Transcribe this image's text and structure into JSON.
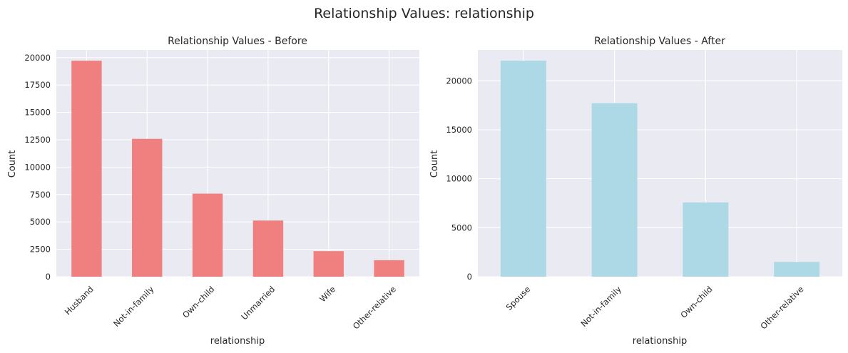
{
  "figure": {
    "suptitle": "Relationship Values: relationship",
    "background": "#ffffff",
    "axes_facecolor": "#eaeaf2",
    "grid_color": "#ffffff"
  },
  "chart_data": [
    {
      "type": "bar",
      "title": "Relationship Values - Before",
      "xlabel": "relationship",
      "ylabel": "Count",
      "categories": [
        "Husband",
        "Not-in-family",
        "Own-child",
        "Unmarried",
        "Wife",
        "Other-relative"
      ],
      "values": [
        19716,
        12583,
        7581,
        5125,
        2331,
        1506
      ],
      "ylim": [
        0,
        20700
      ],
      "yticks": [
        0,
        2500,
        5000,
        7500,
        10000,
        12500,
        15000,
        17500,
        20000
      ],
      "bar_color": "#f08080",
      "grid": true,
      "x_tick_rotation": 45
    },
    {
      "type": "bar",
      "title": "Relationship Values - After",
      "xlabel": "relationship",
      "ylabel": "Count",
      "categories": [
        "Spouse",
        "Not-in-family",
        "Own-child",
        "Other-relative"
      ],
      "values": [
        22047,
        17708,
        7581,
        1506
      ],
      "ylim": [
        0,
        23150
      ],
      "yticks": [
        0,
        5000,
        10000,
        15000,
        20000
      ],
      "bar_color": "#add8e6",
      "grid": true,
      "x_tick_rotation": 45
    }
  ]
}
